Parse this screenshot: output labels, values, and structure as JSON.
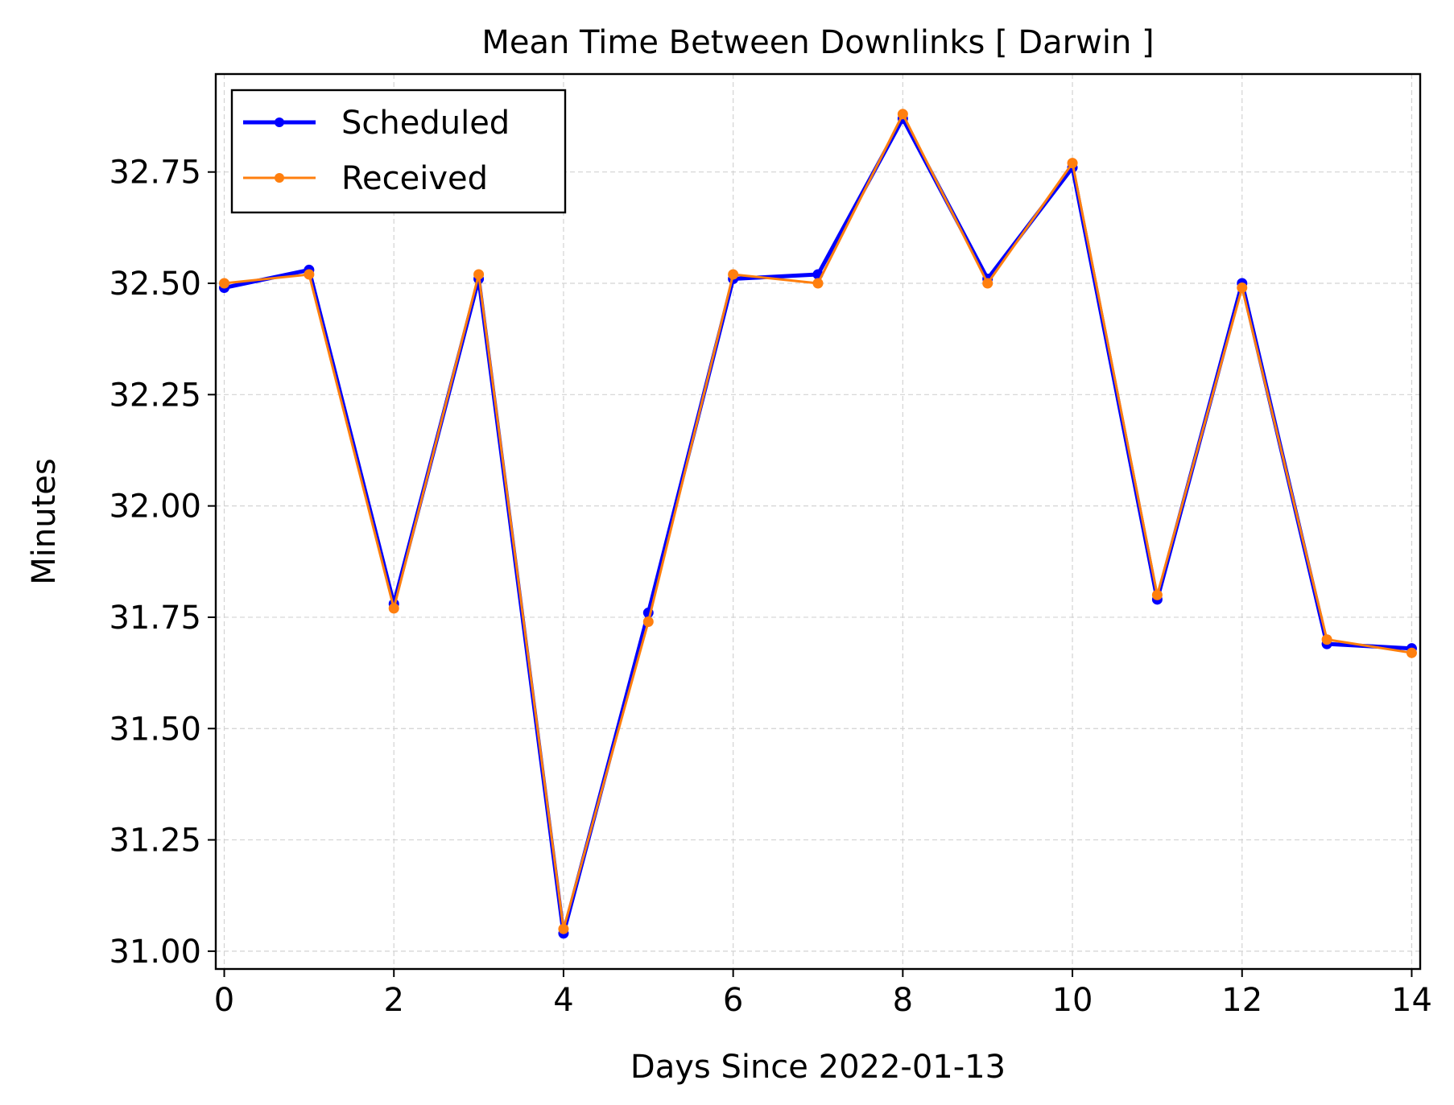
{
  "chart_data": {
    "type": "line",
    "title": "Mean Time Between Downlinks [ Darwin ]",
    "xlabel": "Days Since 2022-01-13",
    "ylabel": "Minutes",
    "x": [
      0,
      1,
      2,
      3,
      4,
      5,
      6,
      7,
      8,
      9,
      10,
      11,
      12,
      13,
      14
    ],
    "xlim": [
      -0.1,
      14.1
    ],
    "ylim": [
      30.96,
      32.97
    ],
    "xticks": [
      0,
      2,
      4,
      6,
      8,
      10,
      12,
      14
    ],
    "yticks": [
      31.0,
      31.25,
      31.5,
      31.75,
      32.0,
      32.25,
      32.5,
      32.75
    ],
    "grid": true,
    "legend_position": "upper-left",
    "series": [
      {
        "name": "Scheduled",
        "color": "#0000ff",
        "values": [
          32.49,
          32.53,
          31.78,
          32.51,
          31.04,
          31.76,
          32.51,
          32.52,
          32.87,
          32.51,
          32.76,
          31.79,
          32.5,
          31.69,
          31.68
        ]
      },
      {
        "name": "Received",
        "color": "#ff7f0e",
        "values": [
          32.5,
          32.52,
          31.77,
          32.52,
          31.05,
          31.74,
          32.52,
          32.5,
          32.88,
          32.5,
          32.77,
          31.8,
          32.49,
          31.7,
          31.67
        ]
      }
    ]
  }
}
